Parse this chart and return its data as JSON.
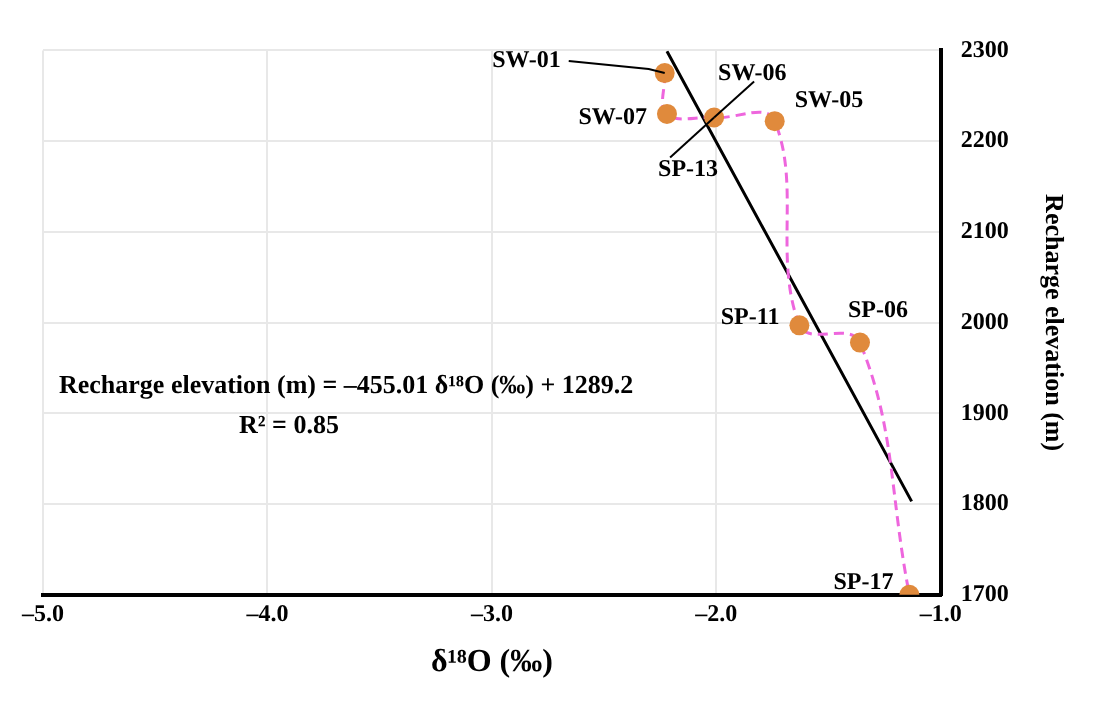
{
  "chart_data": {
    "type": "scatter",
    "xlabel": "δ¹⁸O (‰)",
    "ylabel": "Recharge elevation (m)",
    "xlim": [
      -5,
      -1
    ],
    "xticks": [
      {
        "value": -5,
        "label": "–5.0"
      },
      {
        "value": -4,
        "label": "–4.0"
      },
      {
        "value": -3,
        "label": "–3.0"
      },
      {
        "value": -2,
        "label": "–2.0"
      },
      {
        "value": -1,
        "label": "–1.0"
      }
    ],
    "ylim": [
      1700,
      2300
    ],
    "yticks": [
      1700,
      1800,
      1900,
      2000,
      2100,
      2200,
      2300
    ],
    "grid": true,
    "legend": false,
    "series": [
      {
        "type": "line",
        "color": "#ee66dd",
        "line_style": "dashed",
        "marker": "none",
        "x": [
          -2.23,
          -2.22,
          -2.01,
          -1.74,
          -1.63,
          -1.36,
          -1.14
        ],
        "values": [
          2275,
          2230,
          2226,
          2222,
          1997,
          1978,
          1700
        ]
      },
      {
        "color": "#e08a3c",
        "marker": "circle",
        "x": [
          -2.23,
          -2.22,
          -2.01,
          -1.74,
          -1.63,
          -1.36,
          -1.14
        ],
        "values": [
          2275,
          2230,
          2226,
          2222,
          1997,
          1978,
          1700
        ]
      },
      {
        "type": "line",
        "color": "#000000",
        "line_style": "solid",
        "marker": "none",
        "x": [
          -2.22,
          -1.13
        ],
        "values": [
          2299,
          1803
        ]
      }
    ],
    "annotations": [
      {
        "text": "SW-01",
        "x": -2.23,
        "y": 2275
      },
      {
        "text": "SW-07",
        "x": -2.22,
        "y": 2230
      },
      {
        "text": "SW-06",
        "x": -2.01,
        "y": 2226
      },
      {
        "text": "SP-13",
        "x": -2.01,
        "y": 2226
      },
      {
        "text": "SW-05",
        "x": -1.74,
        "y": 2222
      },
      {
        "text": "SP-11",
        "x": -1.63,
        "y": 1997
      },
      {
        "text": "SP-06",
        "x": -1.36,
        "y": 1978
      },
      {
        "text": "SP-17",
        "x": -1.14,
        "y": 1700
      },
      "Recharge elevation (m) = –455.01 δ¹⁸O (‰) + 1289.2",
      "R² = 0.85"
    ]
  }
}
